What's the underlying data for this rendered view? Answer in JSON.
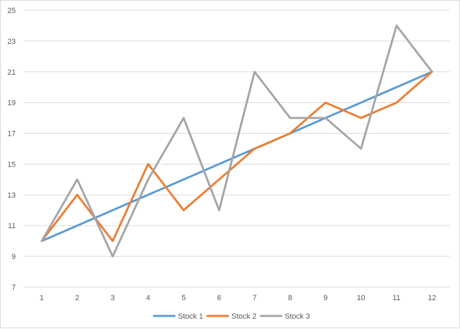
{
  "chart_data": {
    "type": "line",
    "title": "",
    "xlabel": "",
    "ylabel": "",
    "categories": [
      "1",
      "2",
      "3",
      "4",
      "5",
      "6",
      "7",
      "8",
      "9",
      "10",
      "11",
      "12"
    ],
    "y_ticks": [
      7,
      9,
      11,
      13,
      15,
      17,
      19,
      21,
      23,
      25
    ],
    "ylim": [
      7,
      25
    ],
    "grid": "horizontal",
    "legend_position": "bottom",
    "series": [
      {
        "name": "Stock 1",
        "color": "#5b9bd5",
        "values": [
          10,
          11,
          12,
          13,
          14,
          15,
          16,
          17,
          18,
          19,
          20,
          21
        ]
      },
      {
        "name": "Stock 2",
        "color": "#ed7d31",
        "values": [
          10,
          13,
          10,
          15,
          12,
          14,
          16,
          17,
          19,
          18,
          19,
          21
        ]
      },
      {
        "name": "Stock 3",
        "color": "#a5a5a5",
        "values": [
          10,
          14,
          9,
          14,
          18,
          12,
          21,
          18,
          18,
          16,
          24,
          21
        ]
      }
    ]
  }
}
